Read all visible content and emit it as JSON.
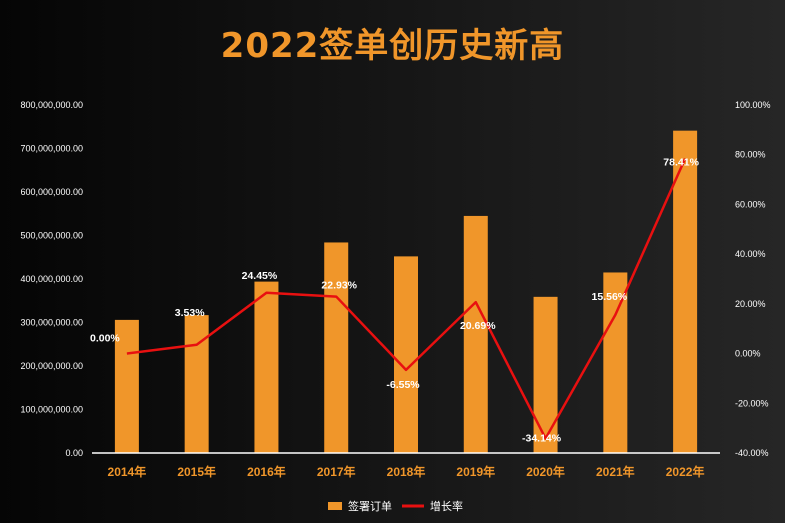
{
  "colors": {
    "bar": "#F0962A",
    "line": "#E81010",
    "axis_text": "#FFFFFF",
    "title": "#F0962A",
    "category_text": "#F0962A",
    "label_text": "#FFFFFF"
  },
  "chart_data": {
    "type": "bar",
    "title": "2022签单创历史新高",
    "categories": [
      "2014年",
      "2015年",
      "2016年",
      "2017年",
      "2018年",
      "2019年",
      "2020年",
      "2021年",
      "2022年"
    ],
    "series": [
      {
        "name": "签署订单",
        "type": "bar",
        "axis": "left",
        "values": [
          306000000,
          317000000,
          394000000,
          484000000,
          452000000,
          545000000,
          359000000,
          415000000,
          741000000
        ]
      },
      {
        "name": "增长率",
        "type": "line",
        "axis": "right",
        "values": [
          0.0,
          3.53,
          24.45,
          22.93,
          -6.55,
          20.69,
          -34.14,
          15.56,
          78.41
        ],
        "labels": [
          "0.00%",
          "3.53%",
          "24.45%",
          "22.93%",
          "-6.55%",
          "20.69%",
          "-34.14%",
          "15.56%",
          "78.41%"
        ]
      }
    ],
    "y_left": {
      "min": 0,
      "max": 800000000,
      "step": 100000000,
      "tick_labels": [
        "0.00",
        "100,000,000.00",
        "200,000,000.00",
        "300,000,000.00",
        "400,000,000.00",
        "500,000,000.00",
        "600,000,000.00",
        "700,000,000.00",
        "800,000,000.00"
      ]
    },
    "y_right": {
      "min": -40,
      "max": 100,
      "step": 20,
      "tick_labels": [
        "-40.00%",
        "-20.00%",
        "0.00%",
        "20.00%",
        "40.00%",
        "60.00%",
        "80.00%",
        "100.00%"
      ]
    },
    "grid": false,
    "legend": {
      "position": "bottom",
      "items": [
        "签署订单",
        "增长率"
      ]
    }
  }
}
